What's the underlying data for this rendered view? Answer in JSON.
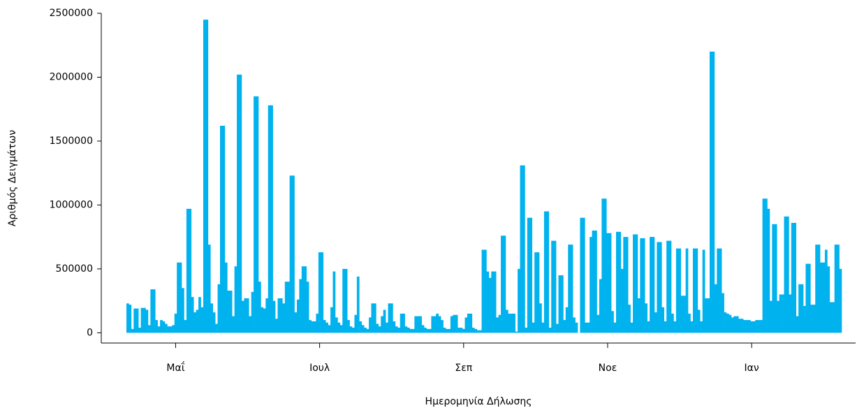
{
  "chart_data": {
    "type": "bar",
    "xlabel": "Ημερομηνία Δήλωσης",
    "ylabel": "Αριθμός Δειγμάτων",
    "color": "#00b2ee",
    "ylim": [
      -80000,
      2500000
    ],
    "yticks": [
      0,
      500000,
      1000000,
      1500000,
      2000000,
      2500000
    ],
    "categories": [
      null,
      null,
      null,
      null,
      null,
      null,
      null,
      null,
      null,
      null,
      null,
      null,
      null,
      null,
      null,
      null,
      null,
      null,
      null,
      null,
      "Μαΐ",
      null,
      null,
      null,
      null,
      null,
      null,
      null,
      null,
      null,
      null,
      null,
      null,
      null,
      null,
      null,
      null,
      null,
      null,
      null,
      null,
      null,
      null,
      null,
      null,
      null,
      null,
      null,
      null,
      null,
      null,
      null,
      null,
      null,
      null,
      null,
      null,
      null,
      null,
      null,
      null,
      null,
      null,
      null,
      null,
      null,
      null,
      null,
      null,
      null,
      null,
      null,
      null,
      null,
      null,
      null,
      null,
      null,
      null,
      null,
      "Ιουλ",
      null,
      null,
      null,
      null,
      null,
      null,
      null,
      null,
      null,
      null,
      null,
      null,
      null,
      null,
      null,
      null,
      null,
      null,
      null,
      null,
      null,
      null,
      null,
      null,
      null,
      null,
      null,
      null,
      null,
      null,
      null,
      null,
      null,
      null,
      null,
      null,
      null,
      null,
      null,
      null,
      null,
      null,
      null,
      null,
      null,
      null,
      null,
      null,
      null,
      null,
      null,
      null,
      null,
      null,
      null,
      null,
      null,
      null,
      null,
      "Σεπ",
      null,
      null,
      null,
      null,
      null,
      null,
      null,
      null,
      null,
      null,
      null,
      null,
      null,
      null,
      null,
      null,
      null,
      null,
      null,
      null,
      null,
      null,
      null,
      null,
      null,
      null,
      null,
      null,
      null,
      null,
      null,
      null,
      null,
      null,
      null,
      null,
      null,
      null,
      null,
      null,
      null,
      null,
      null,
      null,
      null,
      null,
      null,
      null,
      null,
      null,
      null,
      null,
      null,
      null,
      null,
      null,
      null,
      null,
      null,
      "Νοε",
      null,
      null,
      null,
      null,
      null,
      null,
      null,
      null,
      null,
      null,
      null,
      null,
      null,
      null,
      null,
      null,
      null,
      null,
      null,
      null,
      null,
      null,
      null,
      null,
      null,
      null,
      null,
      null,
      null,
      null,
      null,
      null,
      null,
      null,
      null,
      null,
      null,
      null,
      null,
      null,
      null,
      null,
      null,
      null,
      null,
      null,
      null,
      null,
      null,
      null,
      null,
      null,
      null,
      null,
      null,
      null,
      null,
      null,
      null,
      "Ιαν",
      null,
      null,
      null,
      null,
      null,
      null,
      null,
      null,
      null,
      null,
      null,
      null,
      null,
      null,
      null,
      null,
      null,
      null,
      null,
      null,
      null,
      null,
      null,
      null,
      null,
      null,
      null,
      null,
      null,
      null,
      null,
      null,
      null,
      null,
      null,
      null,
      null
    ],
    "values": [
      230000,
      220000,
      30000,
      190000,
      190000,
      40000,
      195000,
      195000,
      180000,
      60000,
      340000,
      340000,
      100000,
      50000,
      100000,
      90000,
      70000,
      50000,
      50000,
      60000,
      150000,
      550000,
      550000,
      350000,
      100000,
      970000,
      970000,
      280000,
      160000,
      180000,
      280000,
      200000,
      2450000,
      2450000,
      690000,
      230000,
      160000,
      70000,
      380000,
      1620000,
      1620000,
      550000,
      330000,
      330000,
      130000,
      520000,
      2020000,
      2020000,
      250000,
      270000,
      270000,
      130000,
      320000,
      1850000,
      1850000,
      400000,
      200000,
      190000,
      270000,
      1780000,
      1780000,
      250000,
      110000,
      270000,
      270000,
      230000,
      400000,
      400000,
      1230000,
      1230000,
      160000,
      260000,
      420000,
      520000,
      520000,
      400000,
      100000,
      90000,
      90000,
      150000,
      630000,
      630000,
      100000,
      80000,
      60000,
      200000,
      480000,
      120000,
      80000,
      60000,
      500000,
      500000,
      100000,
      50000,
      40000,
      140000,
      440000,
      90000,
      60000,
      40000,
      30000,
      120000,
      230000,
      230000,
      70000,
      50000,
      130000,
      180000,
      80000,
      230000,
      230000,
      90000,
      50000,
      40000,
      150000,
      150000,
      50000,
      40000,
      30000,
      30000,
      130000,
      130000,
      130000,
      60000,
      40000,
      30000,
      30000,
      130000,
      130000,
      150000,
      130000,
      100000,
      40000,
      30000,
      30000,
      130000,
      140000,
      140000,
      40000,
      40000,
      30000,
      120000,
      150000,
      150000,
      40000,
      30000,
      20000,
      20000,
      650000,
      650000,
      480000,
      430000,
      480000,
      480000,
      120000,
      140000,
      760000,
      760000,
      180000,
      150000,
      150000,
      150000,
      10000,
      500000,
      1310000,
      1310000,
      40000,
      900000,
      900000,
      80000,
      630000,
      630000,
      230000,
      80000,
      950000,
      950000,
      40000,
      720000,
      720000,
      70000,
      450000,
      450000,
      100000,
      200000,
      690000,
      690000,
      120000,
      80000,
      0,
      900000,
      900000,
      80000,
      80000,
      750000,
      800000,
      800000,
      140000,
      420000,
      1050000,
      1050000,
      780000,
      780000,
      170000,
      80000,
      790000,
      790000,
      500000,
      750000,
      750000,
      220000,
      80000,
      770000,
      770000,
      270000,
      740000,
      740000,
      230000,
      90000,
      750000,
      750000,
      160000,
      710000,
      710000,
      200000,
      90000,
      720000,
      720000,
      150000,
      90000,
      660000,
      660000,
      290000,
      290000,
      660000,
      150000,
      90000,
      660000,
      660000,
      180000,
      90000,
      650000,
      270000,
      270000,
      2200000,
      2200000,
      380000,
      660000,
      660000,
      310000,
      160000,
      150000,
      140000,
      120000,
      130000,
      130000,
      110000,
      110000,
      100000,
      100000,
      100000,
      90000,
      90000,
      100000,
      100000,
      100000,
      1050000,
      1050000,
      970000,
      250000,
      850000,
      850000,
      250000,
      300000,
      300000,
      910000,
      910000,
      300000,
      860000,
      860000,
      130000,
      380000,
      380000,
      210000,
      540000,
      540000,
      220000,
      220000,
      690000,
      690000,
      550000,
      550000,
      650000,
      520000,
      240000,
      240000,
      690000,
      690000,
      500000
    ]
  }
}
